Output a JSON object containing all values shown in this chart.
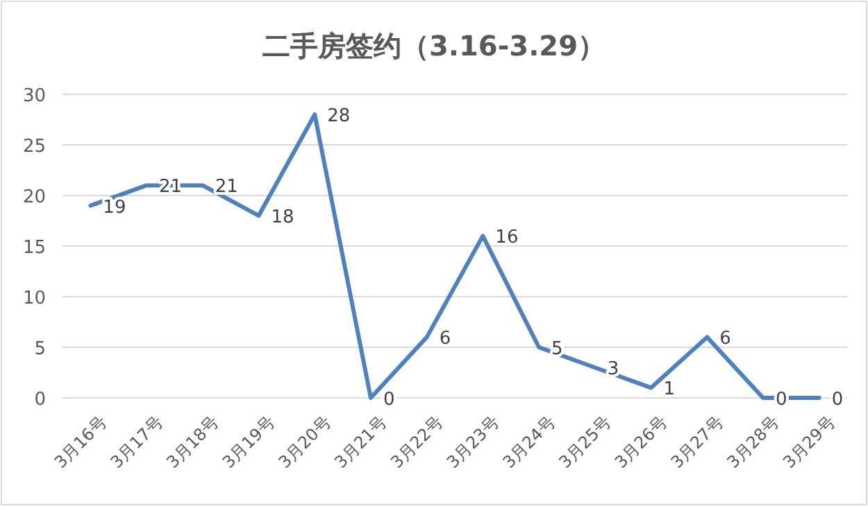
{
  "chart_data": {
    "type": "line",
    "title": "二手房签约（3.16-3.29）",
    "categories": [
      "3月16号",
      "3月17号",
      "3月18号",
      "3月19号",
      "3月20号",
      "3月21号",
      "3月22号",
      "3月23号",
      "3月24号",
      "3月25号",
      "3月26号",
      "3月27号",
      "3月28号",
      "3月29号"
    ],
    "series": [
      {
        "color": "#4f81bd",
        "values": [
          19,
          21,
          21,
          18,
          28,
          0,
          6,
          16,
          5,
          3,
          1,
          6,
          0,
          0
        ]
      }
    ],
    "ylim": [
      0,
      30
    ],
    "yticks": [
      0,
      5,
      10,
      15,
      20,
      25,
      30
    ],
    "grid": "y",
    "data_labels": true,
    "marker": "none",
    "line_style": "solid"
  }
}
